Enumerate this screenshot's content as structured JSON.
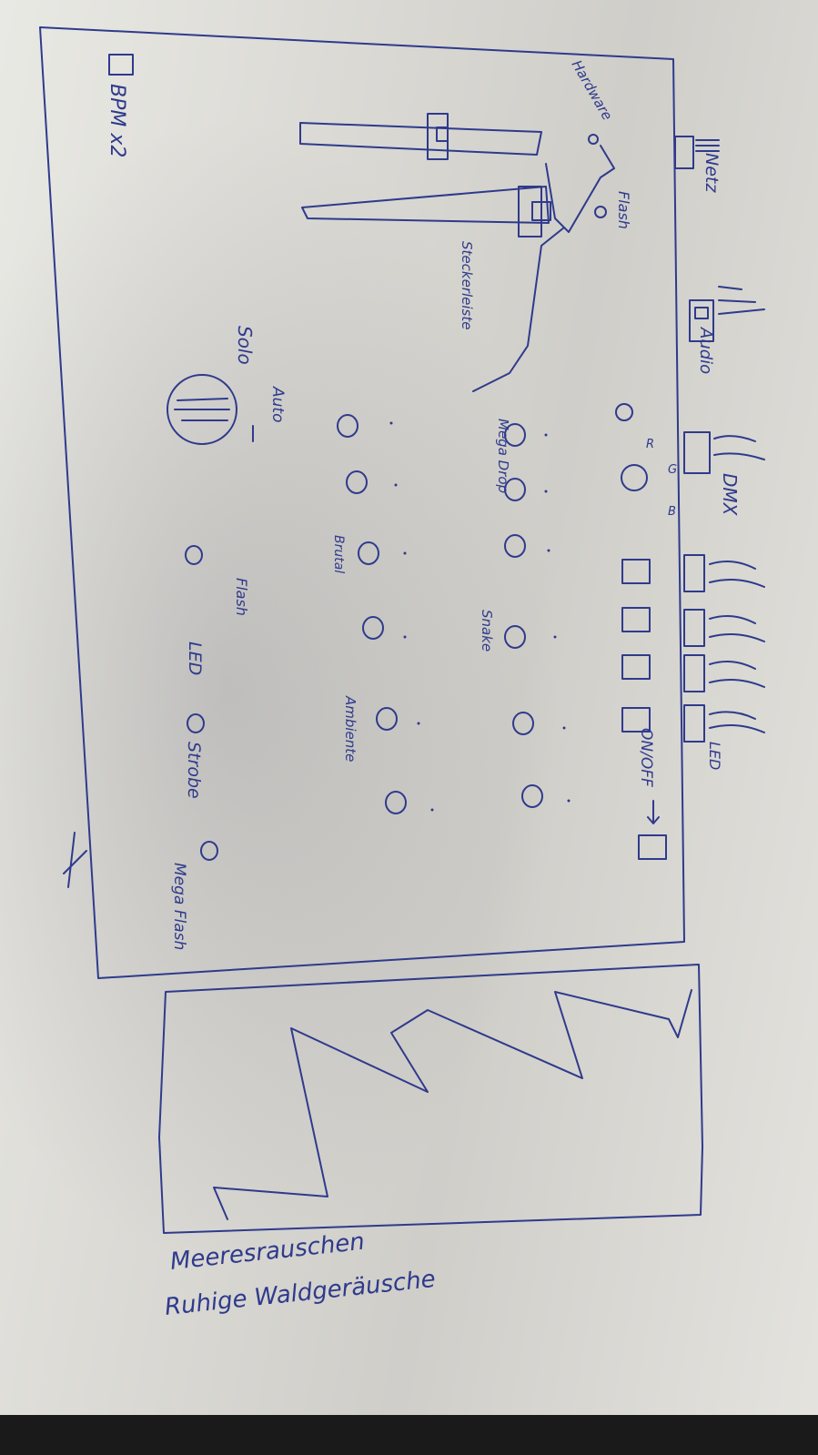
{
  "device_labels": {
    "netz": "Netz",
    "audio": "Audio",
    "dmx": "DMX",
    "led_out": "LED",
    "bpm": "BPM x2",
    "hardware": "Hardware",
    "flash_top": "Flash",
    "steckerleiste": "Steckerleiste",
    "on_off": "ON/OFF",
    "rgb_r": "R",
    "rgb_g": "G",
    "rgb_b": "B"
  },
  "button_labels": {
    "mega_drop": "Mega Drop",
    "snake": "Snake",
    "brutal": "Brutal",
    "ambiente": "Ambiente",
    "auto": "Auto",
    "solo": "Solo",
    "flash_led": "Flash",
    "led": "LED",
    "strobe": "Strobe",
    "mega_flash": "Mega Flash"
  },
  "sounds": {
    "meeresrauschen": "Meeresrauschen",
    "waldgeraeusche": "Ruhige Waldgeräusche"
  }
}
